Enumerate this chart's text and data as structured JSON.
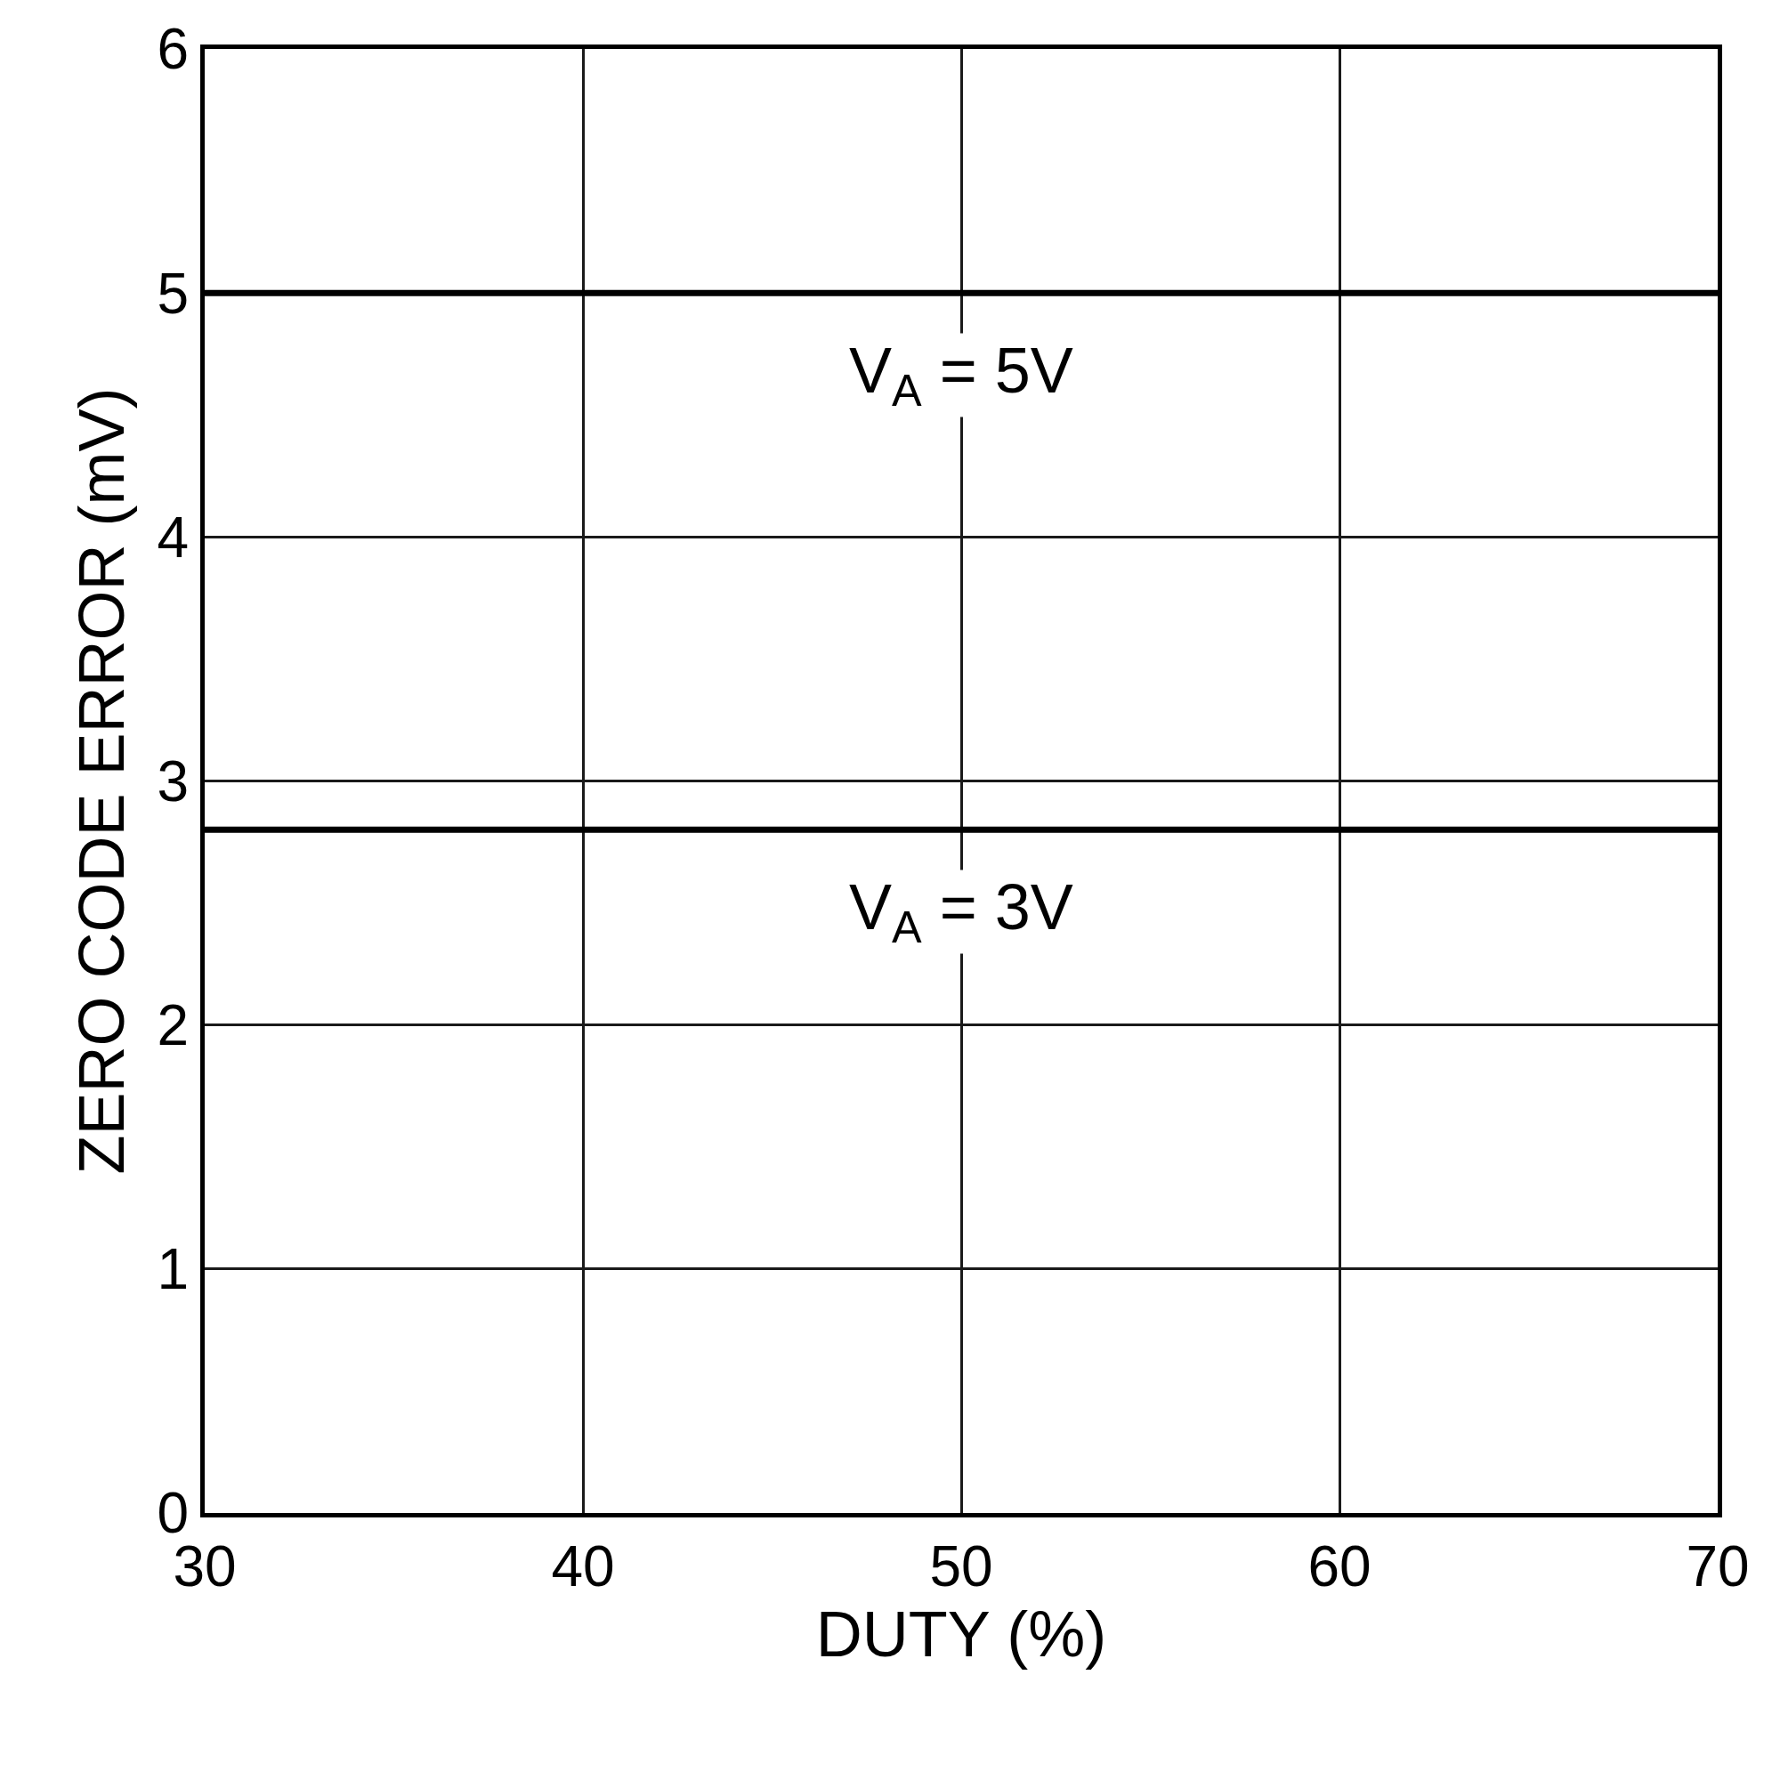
{
  "chart_data": {
    "type": "line",
    "xlabel": "DUTY (%)",
    "ylabel": "ZERO CODE ERROR (mV)",
    "x": [
      30,
      70
    ],
    "series": [
      {
        "name": "V$_{A}$ = 5V",
        "color": "#000000",
        "values": [
          5,
          5
        ]
      },
      {
        "name": "V$_{A}$ = 3V",
        "color": "#000000",
        "values": [
          2.8,
          2.8
        ]
      }
    ],
    "xlim": [
      30,
      70
    ],
    "xticks": [
      30,
      40,
      50,
      60,
      70
    ],
    "ylim": [
      0,
      6
    ],
    "yticks": [
      0,
      1,
      2,
      3,
      4,
      5,
      6
    ],
    "grid": true,
    "legend": false,
    "marker": "none",
    "line_style": "solid"
  }
}
